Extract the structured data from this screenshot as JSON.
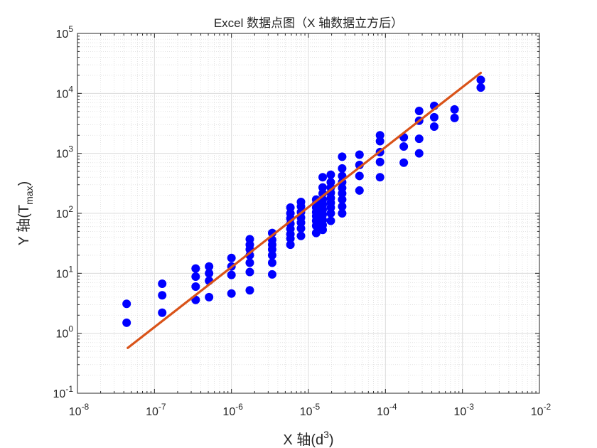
{
  "chart_data": {
    "type": "scatter",
    "title": "Excel 数据点图（X 轴数据立方后）",
    "xlabel": {
      "main": "X 轴(d",
      "sup": "3",
      "close": ")"
    },
    "ylabel": {
      "main": "Y 轴(T",
      "sub": "max",
      "close": ")"
    },
    "xscale": "log",
    "yscale": "log",
    "xlim": [
      1e-08,
      0.01
    ],
    "ylim": [
      0.1,
      100000
    ],
    "grid": true,
    "minor_grid": true,
    "x_ticks": [
      {
        "base": "10",
        "exp": "-8"
      },
      {
        "base": "10",
        "exp": "-7"
      },
      {
        "base": "10",
        "exp": "-6"
      },
      {
        "base": "10",
        "exp": "-5"
      },
      {
        "base": "10",
        "exp": "-4"
      },
      {
        "base": "10",
        "exp": "-3"
      },
      {
        "base": "10",
        "exp": "-2"
      }
    ],
    "y_ticks": [
      {
        "base": "10",
        "exp": "-1"
      },
      {
        "base": "10",
        "exp": "0"
      },
      {
        "base": "10",
        "exp": "1"
      },
      {
        "base": "10",
        "exp": "2"
      },
      {
        "base": "10",
        "exp": "3"
      },
      {
        "base": "10",
        "exp": "4"
      },
      {
        "base": "10",
        "exp": "5"
      }
    ],
    "colors": {
      "points": "#0000ff",
      "fit_line": "#d95319",
      "grid": "#dcdcdc",
      "axes": "#262626"
    },
    "series": [
      {
        "kind": "points",
        "points": [
          [
            4.35e-08,
            3.1
          ],
          [
            4.35e-08,
            1.5
          ],
          [
            1.26e-07,
            6.7
          ],
          [
            1.26e-07,
            4.3
          ],
          [
            1.26e-07,
            2.2
          ],
          [
            3.43e-07,
            12
          ],
          [
            3.43e-07,
            8.8
          ],
          [
            3.43e-07,
            6
          ],
          [
            3.43e-07,
            3.6
          ],
          [
            5.12e-07,
            13
          ],
          [
            5.12e-07,
            10
          ],
          [
            5.12e-07,
            7.5
          ],
          [
            5.12e-07,
            4
          ],
          [
            1e-06,
            18
          ],
          [
            1e-06,
            13
          ],
          [
            1e-06,
            9.4
          ],
          [
            1e-06,
            4.6
          ],
          [
            1.73e-06,
            37
          ],
          [
            1.73e-06,
            30
          ],
          [
            1.73e-06,
            25
          ],
          [
            1.73e-06,
            20
          ],
          [
            1.73e-06,
            15
          ],
          [
            1.73e-06,
            10.5
          ],
          [
            1.73e-06,
            5.2
          ],
          [
            3.38e-06,
            47
          ],
          [
            3.38e-06,
            36
          ],
          [
            3.38e-06,
            30
          ],
          [
            3.38e-06,
            25
          ],
          [
            3.38e-06,
            20
          ],
          [
            3.38e-06,
            15
          ],
          [
            3.38e-06,
            9.6
          ],
          [
            5.83e-06,
            125
          ],
          [
            5.83e-06,
            100
          ],
          [
            5.83e-06,
            82
          ],
          [
            5.83e-06,
            67
          ],
          [
            5.83e-06,
            55
          ],
          [
            5.83e-06,
            45
          ],
          [
            5.83e-06,
            38
          ],
          [
            5.83e-06,
            30
          ],
          [
            8e-06,
            155
          ],
          [
            8e-06,
            130
          ],
          [
            8e-06,
            105
          ],
          [
            8e-06,
            85
          ],
          [
            8e-06,
            70
          ],
          [
            8e-06,
            56
          ],
          [
            8e-06,
            42
          ],
          [
            1.26e-05,
            170
          ],
          [
            1.26e-05,
            145
          ],
          [
            1.26e-05,
            125
          ],
          [
            1.26e-05,
            105
          ],
          [
            1.26e-05,
            90
          ],
          [
            1.26e-05,
            75
          ],
          [
            1.26e-05,
            62
          ],
          [
            1.26e-05,
            47
          ],
          [
            1.53e-05,
            400
          ],
          [
            1.53e-05,
            270
          ],
          [
            1.53e-05,
            215
          ],
          [
            1.53e-05,
            170
          ],
          [
            1.53e-05,
            140
          ],
          [
            1.53e-05,
            115
          ],
          [
            1.53e-05,
            95
          ],
          [
            1.53e-05,
            78
          ],
          [
            1.53e-05,
            64
          ],
          [
            1.53e-05,
            53
          ],
          [
            1.95e-05,
            440
          ],
          [
            1.95e-05,
            330
          ],
          [
            1.95e-05,
            270
          ],
          [
            1.95e-05,
            220
          ],
          [
            1.95e-05,
            180
          ],
          [
            1.95e-05,
            150
          ],
          [
            1.95e-05,
            125
          ],
          [
            1.95e-05,
            100
          ],
          [
            1.95e-05,
            75
          ],
          [
            2.74e-05,
            880
          ],
          [
            2.74e-05,
            560
          ],
          [
            2.74e-05,
            420
          ],
          [
            2.74e-05,
            330
          ],
          [
            2.74e-05,
            265
          ],
          [
            2.74e-05,
            215
          ],
          [
            2.74e-05,
            170
          ],
          [
            2.74e-05,
            130
          ],
          [
            2.74e-05,
            100
          ],
          [
            4.6e-05,
            950
          ],
          [
            4.6e-05,
            640
          ],
          [
            4.6e-05,
            420
          ],
          [
            4.6e-05,
            240
          ],
          [
            8.5e-05,
            2000
          ],
          [
            8.5e-05,
            1600
          ],
          [
            8.5e-05,
            1050
          ],
          [
            8.5e-05,
            720
          ],
          [
            8.5e-05,
            400
          ],
          [
            0.000173,
            1850
          ],
          [
            0.000173,
            1300
          ],
          [
            0.000173,
            700
          ],
          [
            0.000274,
            5100
          ],
          [
            0.000274,
            3500
          ],
          [
            0.000274,
            1750
          ],
          [
            0.000274,
            1000
          ],
          [
            0.00043,
            6200
          ],
          [
            0.00043,
            4000
          ],
          [
            0.00043,
            2800
          ],
          [
            0.00079,
            5400
          ],
          [
            0.00079,
            3900
          ],
          [
            0.00173,
            16800
          ],
          [
            0.00173,
            12500
          ]
        ]
      },
      {
        "kind": "fit_line",
        "points": [
          [
            4.5e-08,
            0.57
          ],
          [
            0.00173,
            22000
          ]
        ]
      }
    ]
  }
}
